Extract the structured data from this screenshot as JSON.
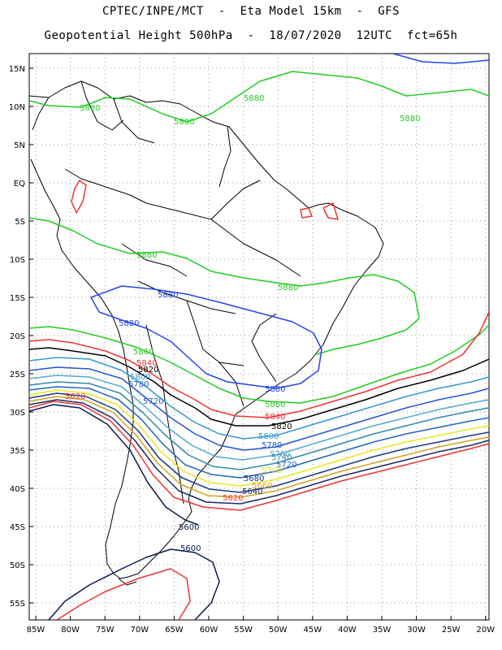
{
  "header": {
    "line1": "CPTEC/INPE/MCT  -  Eta Model 15km  -  GFS",
    "line2": "Geopotential Height 500hPa  -  18/07/2020  12UTC  fct=65h"
  },
  "axes": {
    "lat_labels": [
      "15N",
      "10N",
      "5N",
      "EQ",
      "5S",
      "10S",
      "15S",
      "20S",
      "25S",
      "30S",
      "35S",
      "40S",
      "45S",
      "50S",
      "55S"
    ],
    "lon_labels": [
      "85W",
      "80W",
      "75W",
      "70W",
      "65W",
      "60W",
      "55W",
      "50W",
      "45W",
      "40W",
      "35W",
      "30W",
      "25W",
      "20W"
    ],
    "grid": true,
    "grid_style": "dotted"
  },
  "contours": [
    {
      "value": 5880,
      "label": "5880",
      "color": "#22cc22"
    },
    {
      "value": 5880,
      "label": "5880",
      "color": "#2244ee"
    },
    {
      "value": 5860,
      "label": "5860",
      "color": "#22cc22"
    },
    {
      "value": 5840,
      "label": "5840",
      "color": "#ee3333"
    },
    {
      "value": 5820,
      "label": "5820",
      "color": "#000000"
    },
    {
      "value": 5800,
      "label": "5800",
      "color": "#3399cc"
    },
    {
      "value": 5780,
      "label": "5780",
      "color": "#2255cc"
    },
    {
      "value": 5760,
      "label": "5760",
      "color": "#55aacc"
    },
    {
      "value": 5740,
      "label": "5740",
      "color": "#3388aa"
    },
    {
      "value": 5720,
      "label": "5720",
      "color": "#2266bb"
    },
    {
      "value": 5700,
      "label": "5700",
      "color": "#e8e820"
    },
    {
      "value": 5680,
      "label": "5680",
      "color": "#1a3a80"
    },
    {
      "value": 5660,
      "label": "5660",
      "color": "#d4a020"
    },
    {
      "value": 5640,
      "label": "5640",
      "color": "#1a2a60"
    },
    {
      "value": 5620,
      "label": "5620",
      "color": "#ee3333"
    },
    {
      "value": 5600,
      "label": "5600",
      "color": "#0a1a50"
    }
  ]
}
